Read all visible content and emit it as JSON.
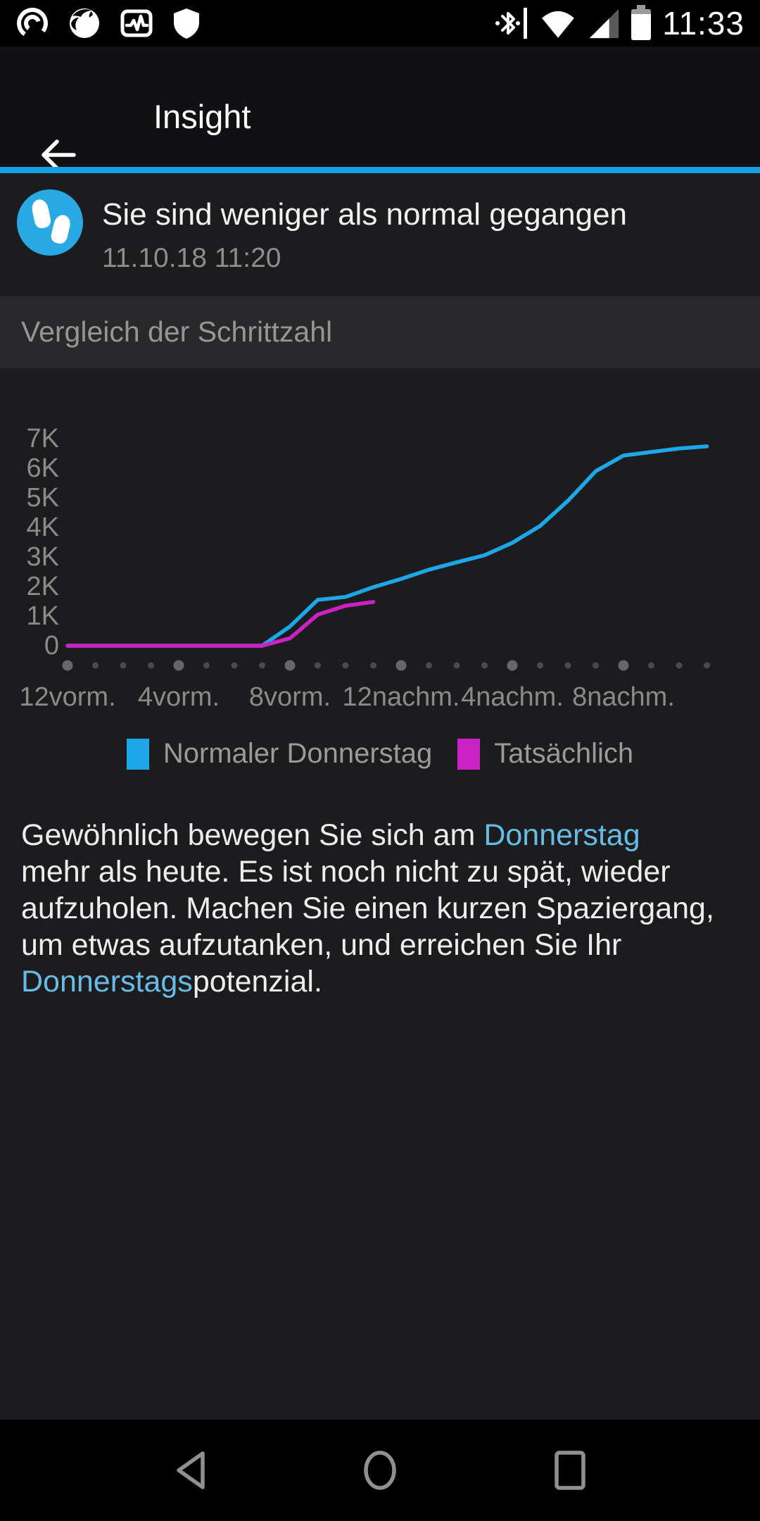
{
  "status_bar": {
    "time": "11:33",
    "left_icons": [
      "podcast-app-icon",
      "firefox-icon",
      "activity-app-icon",
      "shield-icon"
    ],
    "right_icons": [
      "bluetooth-connected-icon",
      "wifi-icon",
      "cell-signal-icon",
      "battery-icon"
    ]
  },
  "app_bar": {
    "title": "Insight"
  },
  "insight_card": {
    "icon": "footsteps-icon",
    "icon_bg": "#29a9e4",
    "title": "Sie sind weniger als normal gegangen",
    "timestamp": "11.10.18 11:20"
  },
  "section_header": "Vergleich der Schrittzahl",
  "chart_data": {
    "type": "line",
    "title": "Vergleich der Schrittzahl",
    "grid": false,
    "legend_position": "bottom",
    "ylim": [
      0,
      7400
    ],
    "xlim_hours": [
      0,
      23
    ],
    "x_axis": {
      "tick_hours": [
        0,
        4,
        8,
        12,
        16,
        20
      ],
      "tick_labels": [
        "12vorm.",
        "4vorm.",
        "8vorm.",
        "12nachm.",
        "4nachm.",
        "8nachm."
      ],
      "dot_hours_emphasized_every": 4
    },
    "y_axis": {
      "tick_labels": [
        "7K",
        "6K",
        "5K",
        "4K",
        "3K",
        "2K",
        "1K",
        "0"
      ],
      "tick_values": [
        7000,
        6000,
        5000,
        4000,
        3000,
        2000,
        1000,
        0
      ],
      "unit": "Schritte"
    },
    "series": [
      {
        "name": "Normaler Donnerstag",
        "color": "#1ea7e8",
        "hours": [
          0,
          1,
          2,
          3,
          4,
          5,
          6,
          7,
          8,
          9,
          10,
          11,
          12,
          13,
          14,
          15,
          16,
          17,
          18,
          19,
          20,
          21,
          22,
          23
        ],
        "values": [
          0,
          0,
          0,
          0,
          0,
          0,
          0,
          0,
          650,
          1550,
          1650,
          1980,
          2260,
          2570,
          2820,
          3060,
          3480,
          4050,
          4900,
          5900,
          6430,
          6550,
          6670,
          6740
        ]
      },
      {
        "name": "Tatsächlich",
        "color": "#cb22c5",
        "hours": [
          0,
          1,
          2,
          3,
          4,
          5,
          6,
          7,
          8,
          9,
          10,
          11
        ],
        "values": [
          0,
          0,
          0,
          0,
          0,
          0,
          0,
          0,
          250,
          1050,
          1350,
          1480
        ]
      }
    ],
    "colors": {
      "axis_text": "#8a8a8a",
      "dot_small": "#4b4b4d",
      "dot_big": "#67676a"
    }
  },
  "body": {
    "lines": [
      [
        {
          "t": "Gewöhnlich bewegen Sie sich am ",
          "link": false
        },
        {
          "t": "Donnerstag",
          "link": true
        }
      ],
      [
        {
          "t": "mehr als heute. Es ist noch nicht zu spät, wieder",
          "link": false
        }
      ],
      [
        {
          "t": "aufzuholen. Machen Sie einen kurzen Spaziergang,",
          "link": false
        }
      ],
      [
        {
          "t": "um etwas aufzutanken, und erreichen Sie Ihr",
          "link": false
        }
      ],
      [
        {
          "t": "Donnerstags",
          "link": true
        },
        {
          "t": "potenzial.",
          "link": false
        }
      ]
    ]
  },
  "nav_bar": {
    "icons": [
      "back-triangle-icon",
      "home-circle-icon",
      "recents-square-icon"
    ]
  },
  "colors": {
    "accent_divider": "#18a0e2",
    "app_bar_bg": "#111113",
    "content_bg": "#1c1c1e",
    "band_bg": "#29292c",
    "link_blue": "#66bce6"
  }
}
